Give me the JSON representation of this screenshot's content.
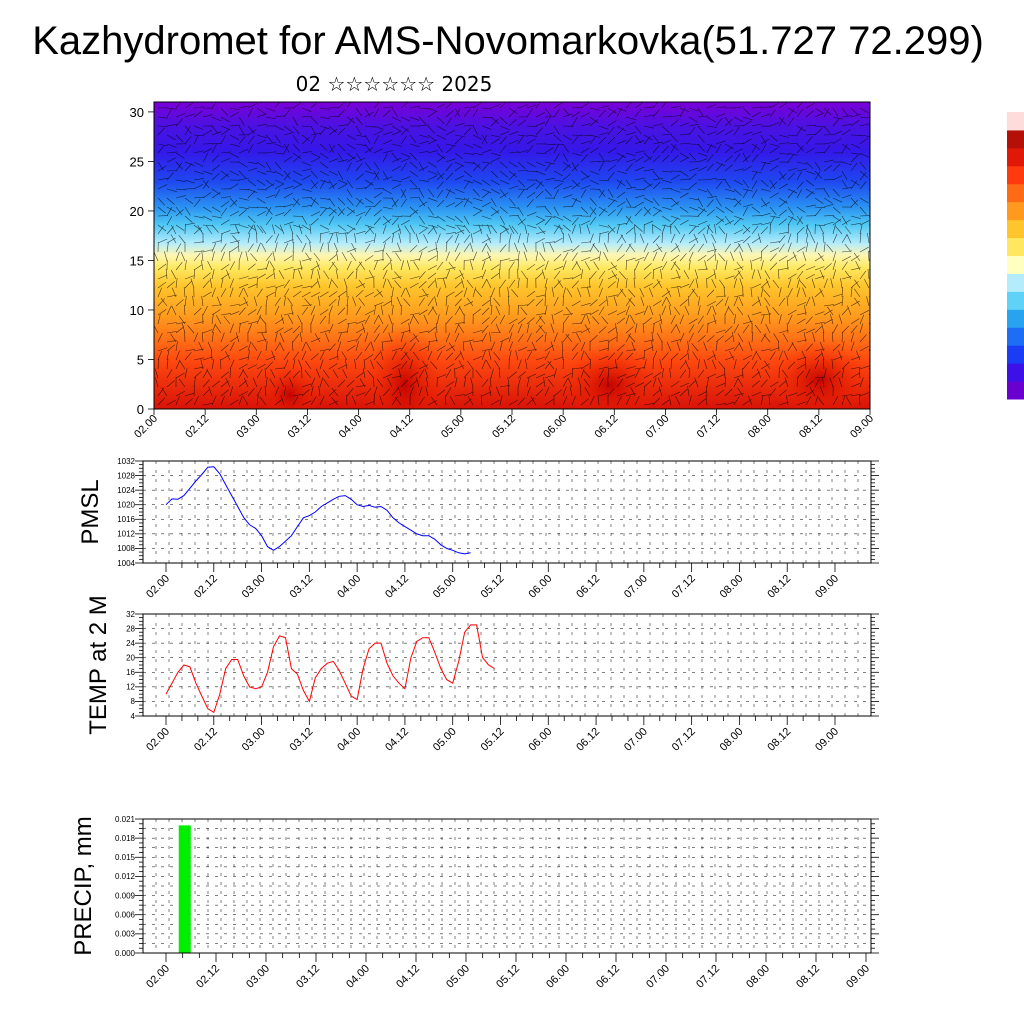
{
  "page": {
    "title": "Kazhydromet for AMS-Novomarkovka(51.727 72.299)",
    "subtitle": "02 ☆☆☆☆☆☆ 2025"
  },
  "colors": {
    "pmsl": "#0000ff",
    "temp": "#ff0000",
    "precip": "#00ee00",
    "grid": "#000000"
  },
  "chart_data": [
    {
      "type": "heatmap",
      "title": "",
      "xlabel": "",
      "ylabel": "",
      "x_ticks": [
        "02.00",
        "02.12",
        "03.00",
        "03.12",
        "04.00",
        "04.12",
        "05.00",
        "05.12",
        "06.00",
        "06.12",
        "07.00",
        "07.12",
        "08.00",
        "08.12",
        "09.00"
      ],
      "y_ticks": [
        "0",
        "5",
        "10",
        "15",
        "20",
        "25",
        "30"
      ],
      "ylim": [
        0,
        31
      ],
      "colorbar_colors": [
        "#6a00d0",
        "#3e10e8",
        "#1a3cf4",
        "#1e6ef5",
        "#28a3f0",
        "#60d2f8",
        "#b4ecfc",
        "#ffffc0",
        "#ffe860",
        "#ffc52c",
        "#ff9a1e",
        "#ff6a14",
        "#ff3a0c",
        "#e01808",
        "#b41007",
        "#ffdcdc"
      ],
      "overlay": "wind barbs"
    },
    {
      "type": "line",
      "ylabel": "PMSL",
      "x_ticks": [
        "02.00",
        "02.12",
        "03.00",
        "03.12",
        "04.00",
        "04.12",
        "05.00",
        "05.12",
        "06.00",
        "06.12",
        "07.00",
        "07.12",
        "08.00",
        "08.12",
        "09.00"
      ],
      "y_ticks": [
        "1004",
        "1008",
        "1012",
        "1016",
        "1020",
        "1024",
        "1028",
        "1032"
      ],
      "ylim": [
        1004,
        1032
      ],
      "series": [
        {
          "values": [
            1020.0,
            1021.6,
            1021.5,
            1022.5,
            1024.5,
            1026.5,
            1028.3,
            1030.3,
            1030.4,
            1028.5,
            1025.5,
            1022.5,
            1019.5,
            1016.5,
            1014.5,
            1013.5,
            1011.5,
            1008.5,
            1007.5,
            1008.5,
            1010.0,
            1011.5,
            1014.0,
            1016.4,
            1017.0,
            1018.0,
            1019.5,
            1020.5,
            1021.5,
            1022.3,
            1022.5,
            1021.5,
            1020.0,
            1019.5,
            1019.8,
            1019.3,
            1019.5,
            1018.5,
            1016.4,
            1015.0,
            1014.0,
            1013.0,
            1012.0,
            1011.5,
            1011.5,
            1010.5,
            1009.0,
            1008.0,
            1007.5,
            1006.8,
            1006.5,
            1006.8
          ]
        }
      ]
    },
    {
      "type": "line",
      "ylabel": "TEMP at 2 M",
      "x_ticks": [
        "02.00",
        "02.12",
        "03.00",
        "03.12",
        "04.00",
        "04.12",
        "05.00",
        "05.12",
        "06.00",
        "06.12",
        "07.00",
        "07.12",
        "08.00",
        "08.12",
        "09.00"
      ],
      "y_ticks": [
        "4",
        "8",
        "12",
        "16",
        "20",
        "24",
        "28",
        "32"
      ],
      "ylim": [
        4,
        32
      ],
      "series": [
        {
          "values": [
            10,
            13,
            16,
            18,
            17.5,
            13,
            9.5,
            6,
            5,
            10,
            17,
            19.5,
            19.5,
            15,
            12,
            11.5,
            12,
            16,
            23,
            26,
            25.5,
            17,
            15.5,
            11,
            8,
            14.5,
            17,
            18.5,
            19,
            16.5,
            13,
            9.5,
            8.5,
            17,
            22.5,
            24,
            24,
            18.5,
            15,
            13,
            11.5,
            20,
            24.5,
            25.5,
            25.5,
            21.5,
            17,
            14,
            13,
            19,
            27,
            29,
            29,
            20,
            18,
            17
          ]
        }
      ]
    },
    {
      "type": "bar",
      "ylabel": "PRECIP, mm",
      "x_ticks": [
        "02.00",
        "02.12",
        "03.00",
        "03.12",
        "04.00",
        "04.12",
        "05.00",
        "05.12",
        "06.00",
        "06.12",
        "07.00",
        "07.12",
        "08.00",
        "08.12",
        "09.00"
      ],
      "y_ticks": [
        "0.000",
        "0.003",
        "0.006",
        "0.009",
        "0.012",
        "0.015",
        "0.018",
        "0.021"
      ],
      "ylim": [
        0,
        0.021
      ],
      "bars": [
        {
          "x": "02.09",
          "value": 0.02
        }
      ]
    }
  ]
}
